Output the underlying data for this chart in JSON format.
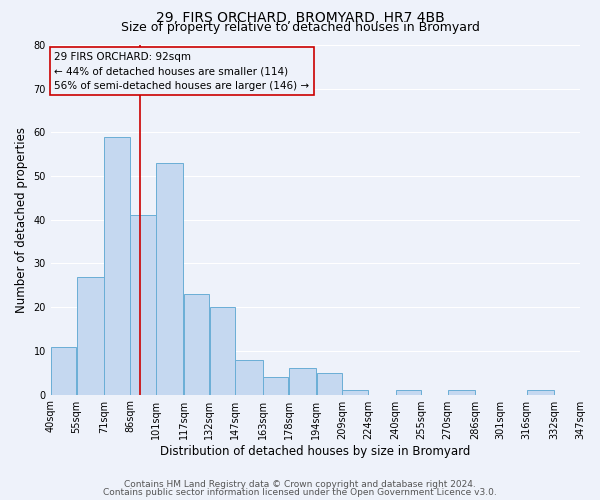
{
  "title": "29, FIRS ORCHARD, BROMYARD, HR7 4BB",
  "subtitle": "Size of property relative to detached houses in Bromyard",
  "xlabel": "Distribution of detached houses by size in Bromyard",
  "ylabel": "Number of detached properties",
  "bar_left_edges": [
    40,
    55,
    71,
    86,
    101,
    117,
    132,
    147,
    163,
    178,
    194,
    209,
    224,
    240,
    255,
    270,
    286,
    301,
    316,
    332
  ],
  "bar_widths": [
    15,
    16,
    15,
    15,
    16,
    15,
    15,
    16,
    15,
    16,
    15,
    15,
    16,
    15,
    15,
    16,
    15,
    15,
    16,
    15
  ],
  "bar_heights": [
    11,
    27,
    59,
    41,
    53,
    23,
    20,
    8,
    4,
    6,
    5,
    1,
    0,
    1,
    0,
    1,
    0,
    0,
    1,
    0
  ],
  "tick_labels": [
    "40sqm",
    "55sqm",
    "71sqm",
    "86sqm",
    "101sqm",
    "117sqm",
    "132sqm",
    "147sqm",
    "163sqm",
    "178sqm",
    "194sqm",
    "209sqm",
    "224sqm",
    "240sqm",
    "255sqm",
    "270sqm",
    "286sqm",
    "301sqm",
    "316sqm",
    "332sqm",
    "347sqm"
  ],
  "tick_positions": [
    40,
    55,
    71,
    86,
    101,
    117,
    132,
    147,
    163,
    178,
    194,
    209,
    224,
    240,
    255,
    270,
    286,
    301,
    316,
    332,
    347
  ],
  "bar_color": "#c5d8f0",
  "bar_edge_color": "#6aaed6",
  "vline_x": 92,
  "vline_color": "#cc0000",
  "ylim": [
    0,
    80
  ],
  "yticks": [
    0,
    10,
    20,
    30,
    40,
    50,
    60,
    70,
    80
  ],
  "xlim": [
    40,
    347
  ],
  "annotation_line1": "29 FIRS ORCHARD: 92sqm",
  "annotation_line2": "← 44% of detached houses are smaller (114)",
  "annotation_line3": "56% of semi-detached houses are larger (146) →",
  "box_edge_color": "#cc0000",
  "background_color": "#eef2fa",
  "grid_color": "#ffffff",
  "footer_line1": "Contains HM Land Registry data © Crown copyright and database right 2024.",
  "footer_line2": "Contains public sector information licensed under the Open Government Licence v3.0.",
  "title_fontsize": 10,
  "subtitle_fontsize": 9,
  "axis_label_fontsize": 8.5,
  "tick_fontsize": 7,
  "annotation_fontsize": 7.5,
  "footer_fontsize": 6.5
}
